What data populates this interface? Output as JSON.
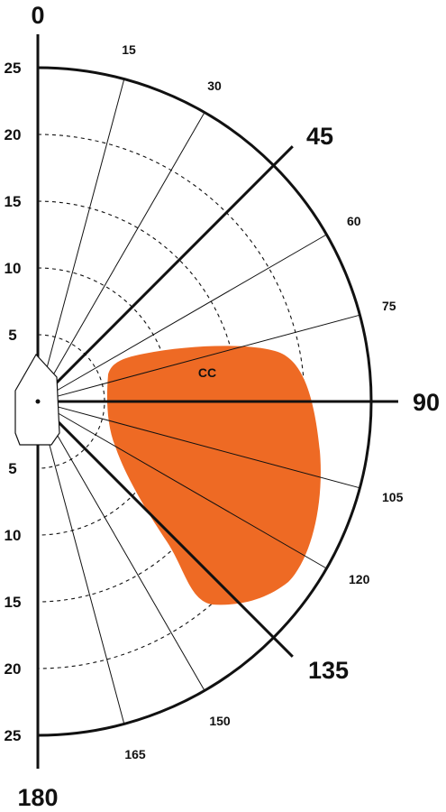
{
  "diagram": {
    "type": "polar-diagram",
    "radial_ticks_upper": [
      "25",
      "20",
      "15",
      "10",
      "5"
    ],
    "radial_ticks_lower": [
      "5",
      "10",
      "15",
      "20",
      "25"
    ],
    "radial_values": [
      5,
      10,
      15,
      20,
      25
    ],
    "angle_lines": [
      {
        "angle": 0,
        "label": "0",
        "major": true
      },
      {
        "angle": 15,
        "label": "15",
        "major": false
      },
      {
        "angle": 30,
        "label": "30",
        "major": false
      },
      {
        "angle": 45,
        "label": "45",
        "major": true
      },
      {
        "angle": 60,
        "label": "60",
        "major": false
      },
      {
        "angle": 75,
        "label": "75",
        "major": false
      },
      {
        "angle": 90,
        "label": "90",
        "major": true
      },
      {
        "angle": 105,
        "label": "105",
        "major": false
      },
      {
        "angle": 120,
        "label": "120",
        "major": false
      },
      {
        "angle": 135,
        "label": "135",
        "major": true
      },
      {
        "angle": 150,
        "label": "150",
        "major": false
      },
      {
        "angle": 165,
        "label": "165",
        "major": false
      },
      {
        "angle": 180,
        "label": "180",
        "major": true
      }
    ],
    "region": {
      "label": "CC",
      "color": "#ee6a24",
      "label_color": "#ffffff"
    },
    "line_color": "#111111"
  }
}
